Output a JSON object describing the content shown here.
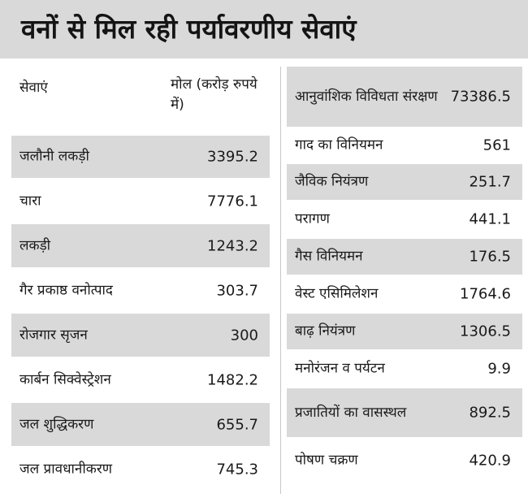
{
  "title": "वनों से मिल रही पर्यावरणीय सेवाएं",
  "left_table": {
    "header": {
      "service": "सेवाएं",
      "value": "मोल (करोड़ रुपये में)"
    },
    "rows": [
      {
        "service": "जलौनी लकड़ी",
        "value": "3395.2"
      },
      {
        "service": "चारा",
        "value": "7776.1"
      },
      {
        "service": "लकड़ी",
        "value": "1243.2"
      },
      {
        "service": "गैर प्रकाष्ठ वनोत्पाद",
        "value": "303.7"
      },
      {
        "service": "रोजगार सृजन",
        "value": "300"
      },
      {
        "service": "कार्बन सिक्वेस्ट्रेशन",
        "value": "1482.2"
      },
      {
        "service": "जल शुद्धिकरण",
        "value": "655.7"
      },
      {
        "service": "जल प्रावधानीकरण",
        "value": "745.3"
      }
    ]
  },
  "right_table": {
    "rows": [
      {
        "service": "आनुवांशिक विविधता संरक्षण",
        "value": "73386.5"
      },
      {
        "service": "गाद का विनियमन",
        "value": "561"
      },
      {
        "service": "जैविक नियंत्रण",
        "value": "251.7"
      },
      {
        "service": "परागण",
        "value": "441.1"
      },
      {
        "service": "गैस विनियमन",
        "value": "176.5"
      },
      {
        "service": "वेस्ट एसिमिलेशन",
        "value": "1764.6"
      },
      {
        "service": "बाढ़ नियंत्रण",
        "value": "1306.5"
      },
      {
        "service": "मनोरंजन व पर्यटन",
        "value": "9.9"
      },
      {
        "service": "प्रजातियों का वासस्थल",
        "value": "892.5"
      },
      {
        "service": "पोषण चक्रण",
        "value": "420.9"
      }
    ]
  },
  "colors": {
    "shade": "#d9d9d9",
    "text": "#1a1a1a"
  }
}
